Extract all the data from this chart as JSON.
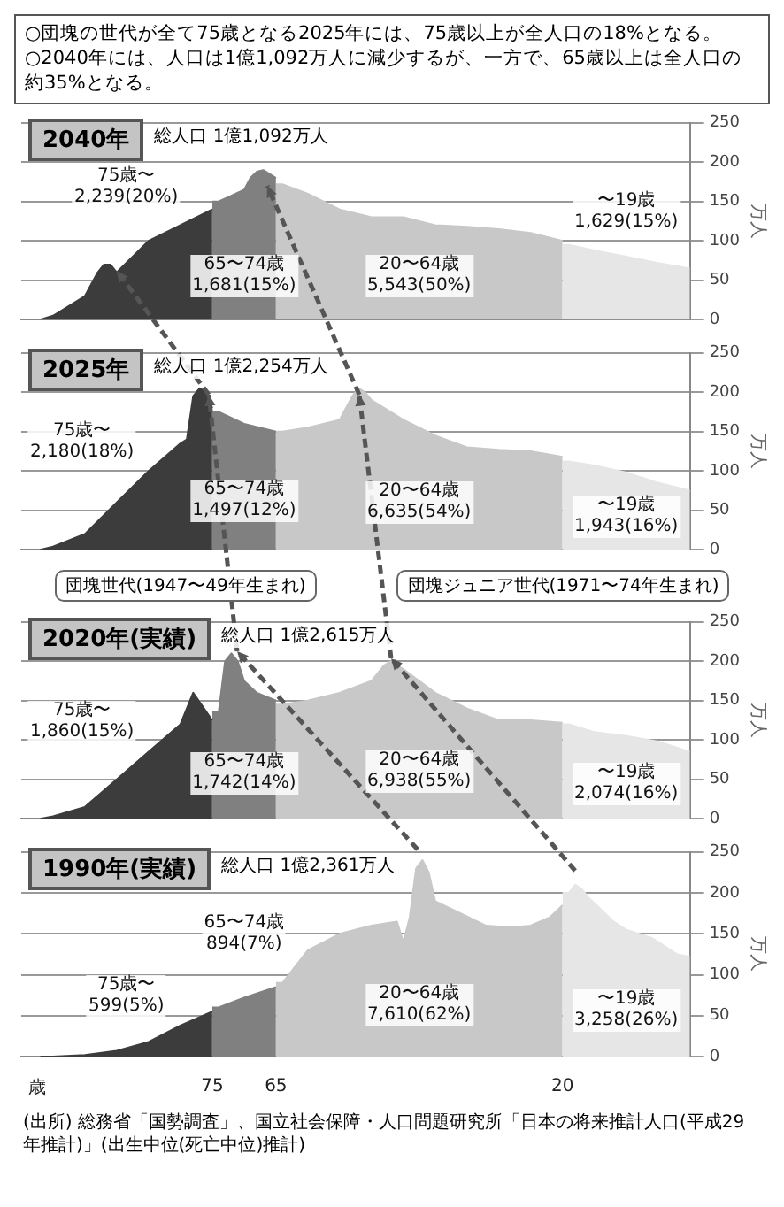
{
  "chart_data": [
    {
      "type": "other",
      "annotations": [
        "○団塊の世代が全て75歳となる2025年には、75歳以上が全人口の18%となる。",
        "○2040年には、人口は1億1,092万人に減少するが、一方で、65歳以上は全人口の約35%となる。"
      ]
    },
    {
      "type": "area",
      "title": "2040年",
      "subtitle": "総人口 1億1,092万人",
      "ylabel": "万人",
      "xlim": [
        105,
        0
      ],
      "xticks": [
        75,
        65,
        20
      ],
      "ylim": [
        0,
        250
      ],
      "yticks": [
        0,
        50,
        100,
        150,
        200,
        250
      ],
      "grid": "y",
      "legend": false,
      "tick_labels": "y",
      "series": [
        {
          "color": "#3c3c3c",
          "x": [
            75,
            80,
            85,
            90,
            91,
            92,
            93,
            95,
            100,
            102
          ],
          "values": [
            140,
            120,
            100,
            60,
            70,
            70,
            60,
            30,
            5,
            0
          ]
        },
        {
          "color": "#808080",
          "x": [
            65,
            66,
            67,
            68,
            69,
            70,
            74,
            75
          ],
          "values": [
            180,
            185,
            190,
            188,
            180,
            165,
            150,
            150
          ]
        },
        {
          "color": "#c8c8c8",
          "x": [
            20,
            25,
            30,
            35,
            40,
            45,
            50,
            55,
            60,
            64,
            65
          ],
          "values": [
            100,
            110,
            115,
            118,
            120,
            130,
            130,
            140,
            160,
            172,
            172
          ]
        },
        {
          "color": "#e6e6e6",
          "x": [
            0,
            5,
            10,
            15,
            19,
            20
          ],
          "values": [
            65,
            72,
            80,
            88,
            95,
            95
          ]
        }
      ],
      "annotations": [
        "75歳〜 2,239(20%)",
        "65〜74歳 1,681(15%)",
        "20〜64歳 5,543(50%)",
        "〜19歳 1,629(15%)"
      ]
    },
    {
      "type": "area",
      "title": "2025年",
      "subtitle": "総人口 1億2,254万人",
      "ylabel": "万人",
      "xlim": [
        105,
        0
      ],
      "xticks": [
        75,
        65,
        20
      ],
      "ylim": [
        0,
        250
      ],
      "yticks": [
        0,
        50,
        100,
        150,
        200,
        250
      ],
      "grid": "y",
      "legend": false,
      "tick_labels": "y",
      "series": [
        {
          "color": "#3c3c3c",
          "x": [
            75,
            76,
            77,
            78,
            79,
            80,
            85,
            90,
            95,
            100,
            102
          ],
          "values": [
            180,
            200,
            205,
            195,
            140,
            135,
            100,
            60,
            20,
            4,
            0
          ]
        },
        {
          "color": "#808080",
          "x": [
            65,
            70,
            74,
            75
          ],
          "values": [
            150,
            160,
            175,
            175
          ]
        },
        {
          "color": "#c8c8c8",
          "x": [
            20,
            25,
            30,
            35,
            40,
            45,
            50,
            51,
            52,
            53,
            54,
            55,
            60,
            64,
            65
          ],
          "values": [
            118,
            125,
            127,
            130,
            145,
            165,
            190,
            200,
            205,
            195,
            180,
            165,
            155,
            150,
            150
          ]
        },
        {
          "color": "#e6e6e6",
          "x": [
            0,
            5,
            10,
            15,
            19,
            20
          ],
          "values": [
            75,
            85,
            98,
            107,
            112,
            112
          ]
        }
      ],
      "annotations": [
        "75歳〜 2,180(18%)",
        "65〜74歳 1,497(12%)",
        "20〜64歳 6,635(54%)",
        "〜19歳 1,943(16%)"
      ]
    },
    {
      "type": "other",
      "annotations": [
        "団塊世代(1947〜49年生まれ)",
        "団塊ジュニア世代(1971〜74年生まれ)"
      ]
    },
    {
      "type": "area",
      "title": "2020年(実績)",
      "subtitle": "総人口 1億2,615万人",
      "ylabel": "万人",
      "xlim": [
        105,
        0
      ],
      "xticks": [
        75,
        65,
        20
      ],
      "ylim": [
        0,
        250
      ],
      "yticks": [
        0,
        50,
        100,
        150,
        200,
        250
      ],
      "grid": "y",
      "legend": false,
      "tick_labels": "y",
      "series": [
        {
          "color": "#3c3c3c",
          "x": [
            75,
            78,
            80,
            85,
            90,
            95,
            100,
            102
          ],
          "values": [
            125,
            160,
            120,
            85,
            50,
            15,
            3,
            0
          ]
        },
        {
          "color": "#808080",
          "x": [
            65,
            68,
            70,
            71,
            72,
            73,
            74,
            75
          ],
          "values": [
            150,
            160,
            175,
            200,
            210,
            200,
            135,
            135
          ]
        },
        {
          "color": "#c8c8c8",
          "x": [
            20,
            25,
            30,
            35,
            40,
            45,
            46,
            47,
            48,
            49,
            50,
            55,
            60,
            64,
            65
          ],
          "values": [
            122,
            125,
            125,
            140,
            160,
            190,
            195,
            200,
            195,
            185,
            175,
            160,
            150,
            145,
            145
          ]
        },
        {
          "color": "#e6e6e6",
          "x": [
            0,
            5,
            10,
            15,
            19,
            20
          ],
          "values": [
            85,
            98,
            105,
            110,
            120,
            120
          ]
        }
      ],
      "annotations": [
        "75歳〜 1,860(15%)",
        "65〜74歳 1,742(14%)",
        "20〜64歳 6,938(55%)",
        "〜19歳 2,074(16%)"
      ]
    },
    {
      "type": "area",
      "title": "1990年(実績)",
      "subtitle": "総人口 1億2,361万人",
      "xlabel": "歳",
      "ylabel": "万人",
      "xlim": [
        105,
        0
      ],
      "xticks": [
        75,
        65,
        20
      ],
      "ylim": [
        0,
        250
      ],
      "yticks": [
        0,
        50,
        100,
        150,
        200,
        250
      ],
      "grid": "y",
      "legend": false,
      "series": [
        {
          "color": "#3c3c3c",
          "x": [
            75,
            80,
            85,
            90,
            95,
            100,
            102
          ],
          "values": [
            55,
            38,
            18,
            7,
            2,
            0,
            0
          ]
        },
        {
          "color": "#808080",
          "x": [
            65,
            70,
            74,
            75
          ],
          "values": [
            85,
            72,
            60,
            60
          ]
        },
        {
          "color": "#c8c8c8",
          "x": [
            20,
            22,
            25,
            28,
            32,
            36,
            40,
            41,
            42,
            43,
            44,
            45,
            46,
            50,
            55,
            60,
            64,
            65
          ],
          "values": [
            185,
            170,
            160,
            158,
            160,
            175,
            190,
            225,
            240,
            230,
            170,
            140,
            165,
            160,
            150,
            130,
            90,
            90
          ]
        },
        {
          "color": "#e6e6e6",
          "x": [
            0,
            2,
            4,
            6,
            8,
            10,
            12,
            14,
            16,
            17,
            18,
            19,
            20
          ],
          "values": [
            122,
            125,
            135,
            145,
            150,
            155,
            165,
            180,
            195,
            205,
            210,
            200,
            200
          ]
        }
      ],
      "annotations": [
        "75歳〜 599(5%)",
        "65〜74歳 894(7%)",
        "20〜64歳 7,610(62%)",
        "〜19歳 3,258(26%)"
      ]
    },
    {
      "type": "other",
      "annotations": [
        "(出所) 総務省「国勢調査」、国立社会保障・人口問題研究所「日本の将来推計人口(平成29年推計)」(出生中位(死亡中位)推計)"
      ]
    }
  ]
}
